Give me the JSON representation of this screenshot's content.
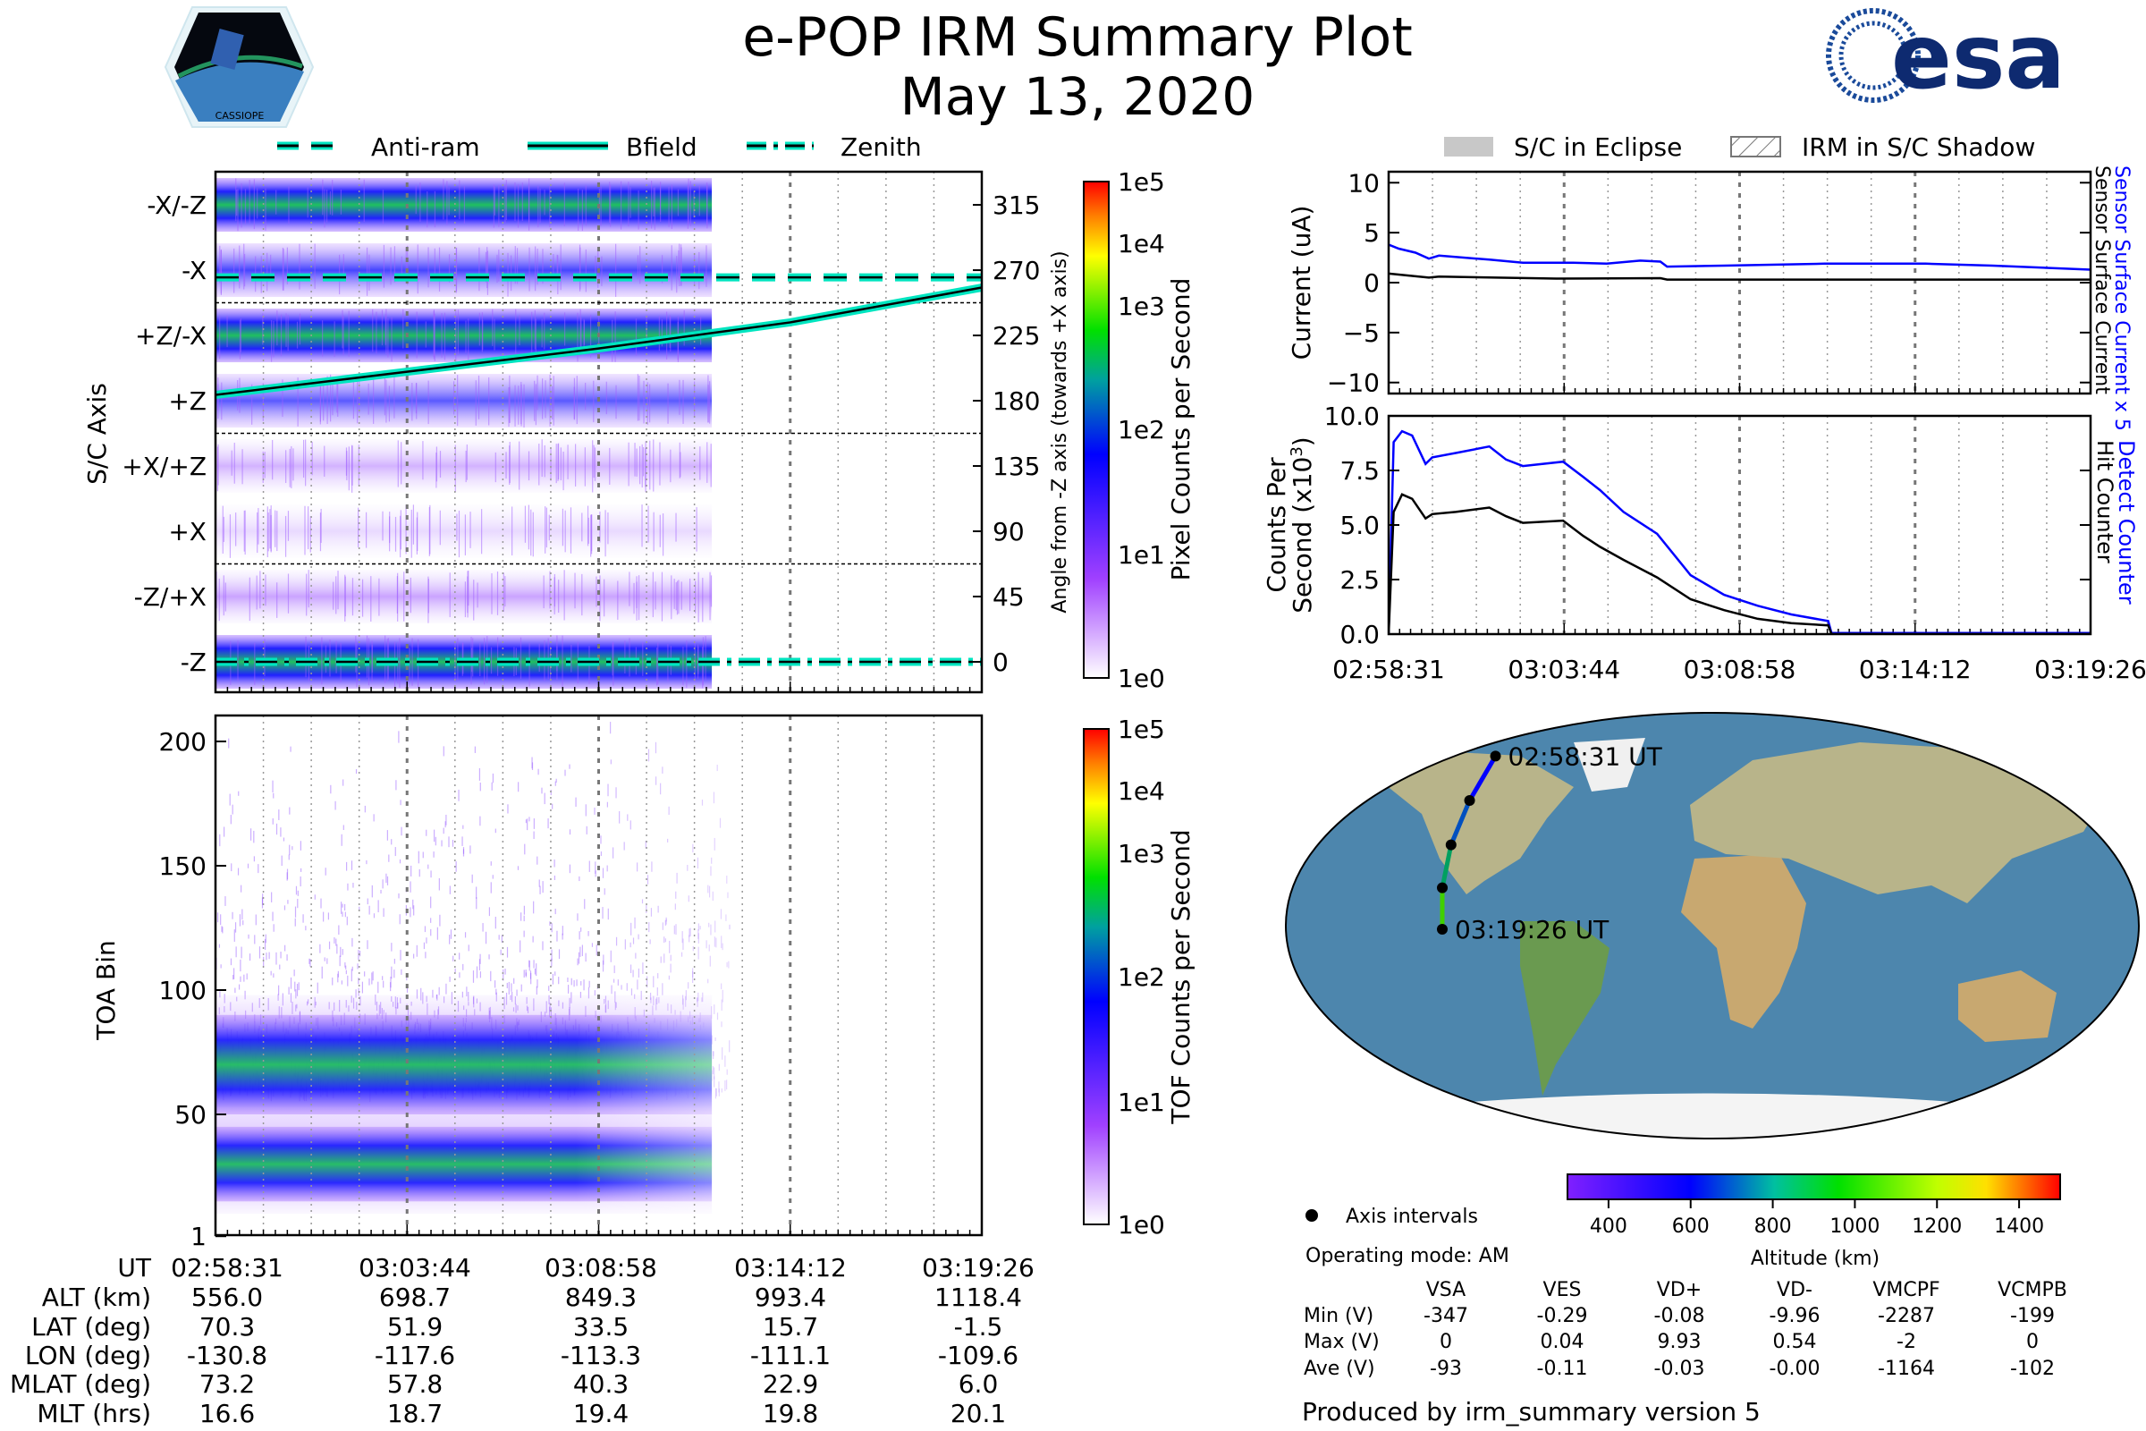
{
  "header": {
    "title": "e-POP IRM Summary Plot",
    "date": "May 13, 2020",
    "left_logo_text": "CASSIOPE",
    "right_logo_text": "esa"
  },
  "legend_left": {
    "anti_ram": "Anti-ram",
    "bfield": "Bfield",
    "zenith": "Zenith"
  },
  "legend_right": {
    "eclipse": "S/C in Eclipse",
    "shadow": "IRM in S/C Shadow"
  },
  "colors": {
    "accent": "#00e5c0",
    "blue_series": "#0000ff",
    "black_series": "#000000",
    "eclipse": "#c8c8c8"
  },
  "chart_data": [
    {
      "type": "heatmap",
      "id": "sc-axis",
      "ylabel": "S/C Axis",
      "ylabel_right": "Angle from -Z axis (towards +X axis)",
      "left_ticks": [
        {
          "label": "-X/-Z",
          "angle": 315
        },
        {
          "label": "-X",
          "angle": 270
        },
        {
          "label": "+Z/-X",
          "angle": 225
        },
        {
          "label": "+Z",
          "angle": 180
        },
        {
          "label": "+X/+Z",
          "angle": 135
        },
        {
          "label": "+X",
          "angle": 90
        },
        {
          "label": "-Z/+X",
          "angle": 45
        },
        {
          "label": "-Z",
          "angle": 0
        }
      ],
      "right_ticks": [
        "315",
        "270",
        "225",
        "180",
        "135",
        "90",
        "45",
        "0"
      ],
      "ylim": [
        -21,
        338
      ],
      "colorbar": {
        "label": "Pixel Counts per Second",
        "ticks": [
          "1e5",
          "1e4",
          "1e3",
          "1e2",
          "1e1",
          "1e0"
        ]
      },
      "lines": {
        "anti_ram_angle": 265,
        "zenith_angle": 0,
        "bfield": {
          "x_min": [
            0,
            5.23,
            10.46,
            15.69,
            20.92
          ],
          "angle": [
            184,
            200,
            216,
            234,
            258
          ]
        }
      },
      "data_end_min": 13.55
    },
    {
      "type": "heatmap",
      "id": "toa",
      "ylabel": "TOA Bin",
      "y_ticks": [
        "200",
        "150",
        "100",
        "50",
        "1"
      ],
      "y_tick_values": [
        200,
        150,
        100,
        50,
        1
      ],
      "ylim": [
        1,
        210
      ],
      "colorbar": {
        "label": "TOF Counts per Second",
        "ticks": [
          "1e5",
          "1e4",
          "1e3",
          "1e2",
          "1e1",
          "1e0"
        ]
      },
      "bands": [
        {
          "center": 70,
          "width": 40
        },
        {
          "center": 30,
          "width": 30
        }
      ],
      "data_end_min": 13.55
    },
    {
      "type": "line",
      "id": "current",
      "ylabel": "Current (uA)",
      "y_ticks": [
        "10",
        "5",
        "0",
        "−5",
        "−10"
      ],
      "y_tick_values": [
        10,
        5,
        0,
        -5,
        -10
      ],
      "ylim": [
        -11.1,
        11.1
      ],
      "xlim_min": [
        0,
        20.92
      ],
      "series": [
        {
          "name": "Sensor Surface Current x 5",
          "color": "#0000ff",
          "x": [
            0,
            0.3,
            0.8,
            1.2,
            1.5,
            3,
            4,
            5.5,
            6.5,
            7.5,
            8.1,
            8.3,
            10,
            13,
            16,
            18,
            20.92
          ],
          "y": [
            3.8,
            3.4,
            3.0,
            2.4,
            2.7,
            2.3,
            2.0,
            2.0,
            1.9,
            2.2,
            2.1,
            1.6,
            1.7,
            1.9,
            1.9,
            1.7,
            1.3
          ]
        },
        {
          "name": "Sensor Surface Current",
          "color": "#000000",
          "x": [
            0,
            1.2,
            1.5,
            5,
            8.1,
            8.3,
            20.92
          ],
          "y": [
            0.9,
            0.5,
            0.6,
            0.4,
            0.45,
            0.3,
            0.3
          ]
        }
      ]
    },
    {
      "type": "line",
      "id": "counts",
      "ylabel_line1": "Counts Per",
      "ylabel_line2": "Second (x10",
      "ylabel_sup": "3",
      "y_ticks": [
        "10.0",
        "7.5",
        "5.0",
        "2.5",
        "0.0"
      ],
      "y_tick_values": [
        10,
        7.5,
        5,
        2.5,
        0
      ],
      "ylim": [
        0,
        10
      ],
      "xlim_min": [
        0,
        20.92
      ],
      "x_ticks": [
        "02:58:31",
        "03:03:44",
        "03:08:58",
        "03:14:12",
        "03:19:26"
      ],
      "series": [
        {
          "name": "Detect Counter",
          "color": "#0000ff",
          "x": [
            0,
            0.15,
            0.4,
            0.7,
            1.1,
            1.3,
            2,
            3,
            3.5,
            4,
            5.2,
            5.8,
            6.3,
            7,
            8,
            9,
            10,
            11,
            12,
            13.1,
            13.2,
            20.92
          ],
          "y": [
            0,
            8.8,
            9.3,
            9.1,
            7.8,
            8.1,
            8.3,
            8.6,
            8.0,
            7.7,
            7.9,
            7.2,
            6.6,
            5.6,
            4.6,
            2.7,
            1.8,
            1.3,
            0.9,
            0.6,
            0.05,
            0.05
          ]
        },
        {
          "name": "Hit Counter",
          "color": "#000000",
          "x": [
            0,
            0.15,
            0.4,
            0.7,
            1.1,
            1.3,
            2,
            3,
            3.5,
            4,
            5.2,
            5.8,
            6.3,
            7,
            8,
            9,
            10,
            11,
            12,
            13.1,
            13.2,
            20.92
          ],
          "y": [
            0,
            5.6,
            6.4,
            6.2,
            5.3,
            5.5,
            5.6,
            5.8,
            5.4,
            5.1,
            5.2,
            4.5,
            4.0,
            3.4,
            2.6,
            1.6,
            1.1,
            0.7,
            0.5,
            0.4,
            0,
            0
          ]
        }
      ]
    },
    {
      "type": "scatter",
      "id": "orbit-map",
      "track_labels": [
        "02:58:31 UT",
        "03:19:26 UT"
      ],
      "points": [
        {
          "lon": -130.8,
          "lat": 70.3
        },
        {
          "lon": -117.6,
          "lat": 51.9
        },
        {
          "lon": -113.3,
          "lat": 33.5
        },
        {
          "lon": -111.1,
          "lat": 15.7
        },
        {
          "lon": -109.6,
          "lat": -1.5
        }
      ],
      "legend": "Axis intervals",
      "colorbar": {
        "label": "Altitude (km)",
        "ticks": [
          "400",
          "600",
          "800",
          "1000",
          "1200",
          "1400"
        ],
        "range": [
          300,
          1500
        ]
      }
    }
  ],
  "info": {
    "operating_mode": "Operating mode: AM",
    "voltage_table": {
      "columns": [
        "VSA",
        "VES",
        "VD+",
        "VD-",
        "VMCPF",
        "VCMPB"
      ],
      "rows": [
        {
          "label": "Min (V)",
          "values": [
            "-347",
            "-0.29",
            "-0.08",
            "-9.96",
            "-2287",
            "-199"
          ]
        },
        {
          "label": "Max (V)",
          "values": [
            "0",
            "0.04",
            "9.93",
            "0.54",
            "-2",
            "0"
          ]
        },
        {
          "label": "Ave (V)",
          "values": [
            "-93",
            "-0.11",
            "-0.03",
            "-0.00",
            "-1164",
            "-102"
          ]
        }
      ]
    },
    "footer": "Produced by irm_summary version 5"
  },
  "ephemeris": {
    "rows": [
      {
        "label": "UT",
        "values": [
          "02:58:31",
          "03:03:44",
          "03:08:58",
          "03:14:12",
          "03:19:26"
        ]
      },
      {
        "label": "ALT (km)",
        "values": [
          "556.0",
          "698.7",
          "849.3",
          "993.4",
          "1118.4"
        ]
      },
      {
        "label": "LAT (deg)",
        "values": [
          "70.3",
          "51.9",
          "33.5",
          "15.7",
          "-1.5"
        ]
      },
      {
        "label": "LON (deg)",
        "values": [
          "-130.8",
          "-117.6",
          "-113.3",
          "-111.1",
          "-109.6"
        ]
      },
      {
        "label": "MLAT (deg)",
        "values": [
          "73.2",
          "57.8",
          "40.3",
          "22.9",
          "6.0"
        ]
      },
      {
        "label": "MLT (hrs)",
        "values": [
          "16.6",
          "18.7",
          "19.4",
          "19.8",
          "20.1"
        ]
      }
    ]
  }
}
